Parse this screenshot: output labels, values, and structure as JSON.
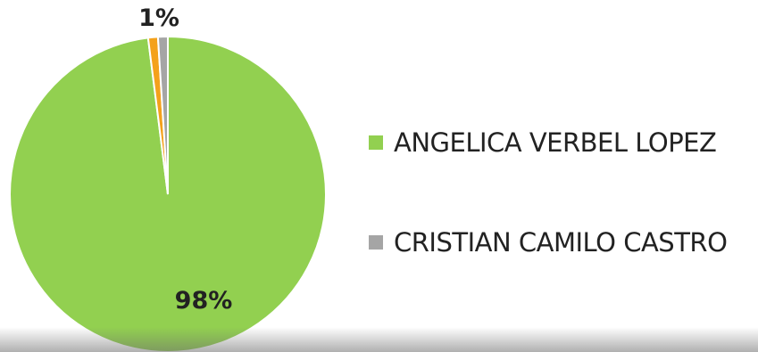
{
  "chart_data": {
    "type": "pie",
    "title": "",
    "slices": [
      {
        "label": "ANGELICA VERBEL LOPEZ",
        "value": 98,
        "color": "#92d050",
        "data_label": "98%"
      },
      {
        "label": "",
        "value": 1,
        "color": "#f4a11b",
        "data_label": ""
      },
      {
        "label": "CRISTIAN CAMILO CASTRO",
        "value": 1,
        "color": "#a5a5a5",
        "data_label": "1%"
      }
    ],
    "legend_position": "right",
    "legend": [
      {
        "label": "ANGELICA VERBEL LOPEZ",
        "color": "#92d050"
      },
      {
        "label": "CRISTIAN CAMILO CASTRO",
        "color": "#a5a5a5"
      }
    ]
  }
}
